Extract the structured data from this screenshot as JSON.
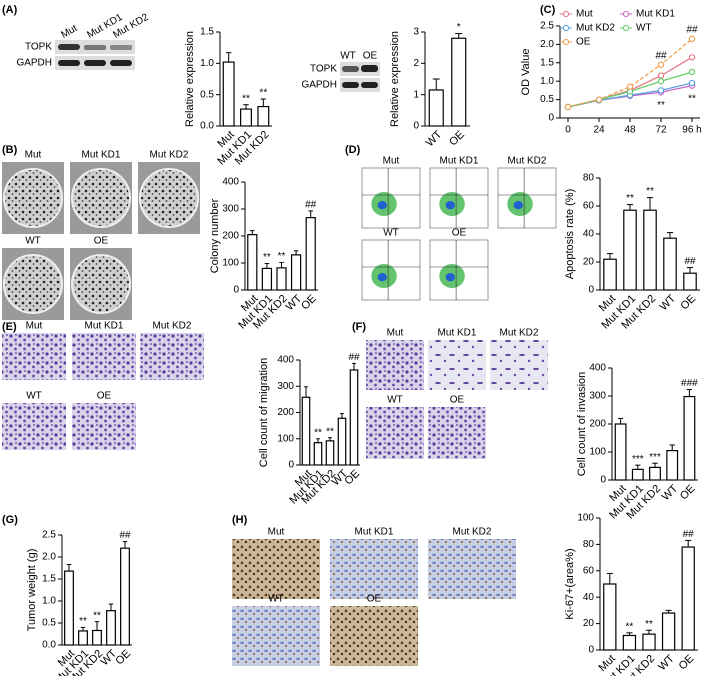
{
  "panel_labels": [
    "(A)",
    "(B)",
    "(C)",
    "(D)",
    "(E)",
    "(F)",
    "(G)",
    "(H)"
  ],
  "blots": {
    "a1": {
      "lanes": [
        "Mut",
        "Mut KD1",
        "Mut KD2"
      ],
      "rows": [
        "TOPK",
        "GAPDH"
      ]
    },
    "a2": {
      "lanes": [
        "WT",
        "OE"
      ],
      "rows": [
        "TOPK",
        "GAPDH"
      ]
    }
  },
  "image_labels": {
    "b": [
      "Mut",
      "Mut KD1",
      "Mut KD2",
      "WT",
      "OE"
    ],
    "d": [
      "Mut",
      "Mut KD1",
      "Mut KD2",
      "WT",
      "OE"
    ],
    "e": [
      "Mut",
      "Mut KD1",
      "Mut KD2",
      "WT",
      "OE"
    ],
    "f": [
      "Mut",
      "Mut KD1",
      "Mut KD2",
      "WT",
      "OE"
    ],
    "h": [
      "Mut",
      "Mut KD1",
      "Mut KD2",
      "WT",
      "OE"
    ]
  },
  "chart_data": [
    {
      "type": "bar",
      "y_label": "Relative expression",
      "categories": [
        "Mut",
        "Mut KD1",
        "Mut KD2"
      ],
      "values": [
        1.02,
        0.27,
        0.31
      ],
      "errors": [
        0.15,
        0.07,
        0.12
      ],
      "significance": [
        null,
        "**",
        "**"
      ],
      "color": "#ffffff",
      "ylim": [
        0,
        1.5
      ],
      "yticks": [
        {
          "value": 0,
          "label": "0.0"
        },
        0.5,
        {
          "value": 1,
          "label": "1.0"
        },
        1.5
      ]
    },
    {
      "type": "bar",
      "y_label": "Relative expression",
      "categories": [
        "WT",
        "OE"
      ],
      "values": [
        1.15,
        2.8
      ],
      "errors": [
        0.35,
        0.15
      ],
      "significance": [
        null,
        "*"
      ],
      "color": "#ffffff",
      "ylim": [
        0,
        3
      ],
      "yticks": [
        0,
        1,
        2,
        3
      ]
    },
    {
      "type": "line",
      "y_label": "OD Value",
      "x": [
        0,
        24,
        48,
        72,
        96
      ],
      "xticks": [
        0,
        24,
        48,
        72,
        {
          "value": 96,
          "label": "96 h"
        }
      ],
      "ylim": [
        0,
        2.5
      ],
      "yticks": [
        0,
        0.5,
        {
          "value": 1,
          "label": "1.0"
        },
        1.5,
        {
          "value": 2,
          "label": "2.0"
        },
        2.5
      ],
      "series": [
        {
          "name": "Mut",
          "color": "#e8788a",
          "values": [
            0.3,
            0.5,
            0.75,
            1.15,
            1.65
          ]
        },
        {
          "name": "Mut KD1",
          "color": "#cc66cc",
          "values": [
            0.3,
            0.48,
            0.6,
            0.7,
            0.88
          ],
          "significance": [
            null,
            null,
            null,
            "**",
            "**"
          ]
        },
        {
          "name": "Mut KD2",
          "color": "#5ba3e0",
          "values": [
            0.3,
            0.48,
            0.62,
            0.75,
            0.95
          ]
        },
        {
          "name": "WT",
          "color": "#66cc66",
          "values": [
            0.3,
            0.5,
            0.72,
            1.0,
            1.25
          ]
        },
        {
          "name": "OE",
          "color": "#f0a050",
          "values": [
            0.3,
            0.5,
            0.85,
            1.45,
            2.15
          ],
          "significance": [
            null,
            null,
            null,
            "##",
            "##"
          ]
        }
      ]
    },
    {
      "type": "bar",
      "y_label": "Colony number",
      "categories": [
        "Mut",
        "Mut KD1",
        "Mut KD2",
        "WT",
        "OE"
      ],
      "values": [
        205,
        80,
        82,
        130,
        268
      ],
      "errors": [
        15,
        18,
        20,
        15,
        25
      ],
      "significance": [
        null,
        "**",
        "**",
        null,
        "##"
      ],
      "color": "#ffffff",
      "ylim": [
        0,
        400
      ],
      "yticks": [
        0,
        100,
        200,
        300,
        400
      ]
    },
    {
      "type": "bar",
      "y_label": "Apoptosis rate (%)",
      "categories": [
        "Mut",
        "Mut KD1",
        "Mut KD2",
        "WT",
        "OE"
      ],
      "values": [
        22,
        57,
        57,
        37,
        12
      ],
      "errors": [
        4,
        4,
        9,
        4,
        4
      ],
      "significance": [
        null,
        "**",
        "**",
        null,
        "##"
      ],
      "color": "#ffffff",
      "ylim": [
        0,
        80
      ],
      "yticks": [
        0,
        20,
        40,
        60,
        80
      ]
    },
    {
      "type": "bar",
      "y_label": "Cell count of migration",
      "categories": [
        "Mut",
        "Mut KD1",
        "Mut KD2",
        "WT",
        "OE"
      ],
      "values": [
        258,
        85,
        92,
        178,
        362
      ],
      "errors": [
        40,
        15,
        12,
        18,
        25
      ],
      "significance": [
        null,
        "**",
        "**",
        null,
        "##"
      ],
      "color": "#ffffff",
      "ylim": [
        0,
        400
      ],
      "yticks": [
        0,
        100,
        200,
        300,
        400
      ]
    },
    {
      "type": "bar",
      "y_label": "Cell count of invasion",
      "categories": [
        "Mut",
        "Mut KD1",
        "Mut KD2",
        "WT",
        "OE"
      ],
      "values": [
        200,
        38,
        45,
        105,
        298
      ],
      "errors": [
        20,
        15,
        15,
        20,
        25
      ],
      "significance": [
        null,
        "***",
        "***",
        null,
        "###"
      ],
      "color": "#ffffff",
      "ylim": [
        0,
        400
      ],
      "yticks": [
        0,
        100,
        200,
        300,
        400
      ]
    },
    {
      "type": "bar",
      "y_label": "Tumor weight (g)",
      "categories": [
        "Mut",
        "Mut KD1",
        "Mut KD2",
        "WT",
        "OE"
      ],
      "values": [
        1.68,
        0.32,
        0.33,
        0.78,
        2.2
      ],
      "errors": [
        0.15,
        0.08,
        0.2,
        0.15,
        0.15
      ],
      "significance": [
        null,
        "**",
        "**",
        null,
        "##"
      ],
      "color": "#ffffff",
      "ylim": [
        0,
        2.5
      ],
      "yticks": [
        {
          "value": 0,
          "label": "0.0"
        },
        0.5,
        {
          "value": 1,
          "label": "1.0"
        },
        1.5,
        {
          "value": 2,
          "label": "2.0"
        },
        2.5
      ]
    },
    {
      "type": "bar",
      "y_label": "Ki-67+(area%)",
      "categories": [
        "Mut",
        "Mut KD1",
        "Mut KD2",
        "WT",
        "OE"
      ],
      "values": [
        50,
        11,
        12,
        28,
        78
      ],
      "errors": [
        8,
        2,
        3,
        2,
        5
      ],
      "significance": [
        null,
        "**",
        "**",
        null,
        "##"
      ],
      "color": "#ffffff",
      "ylim": [
        0,
        100
      ],
      "yticks": [
        0,
        20,
        40,
        60,
        80,
        100
      ]
    }
  ]
}
